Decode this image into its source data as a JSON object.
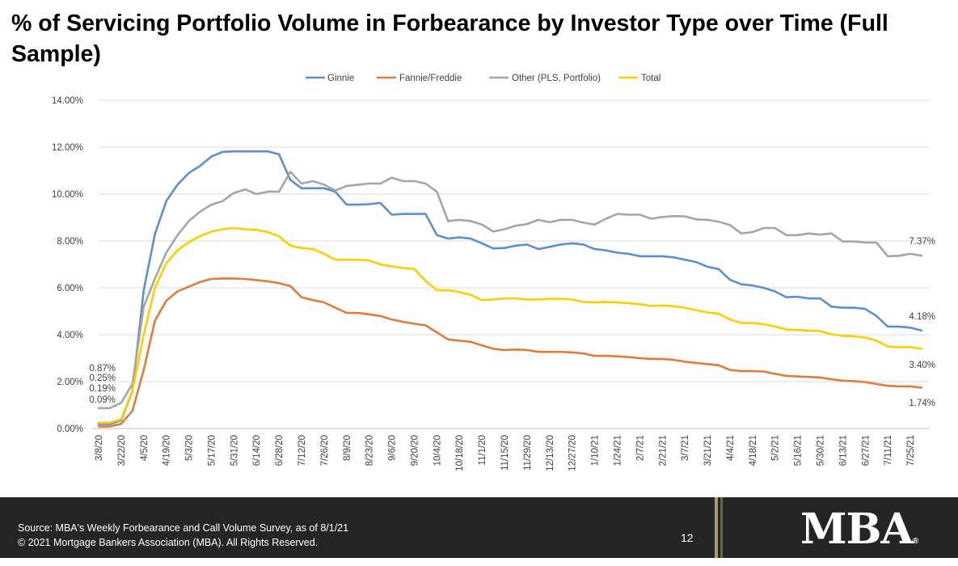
{
  "page": {
    "title": "% of Servicing Portfolio Volume in Forbearance by Investor Type over Time (Full Sample)",
    "footer": {
      "source": "Source: MBA's Weekly Forbearance and Call Volume Survey, as of 8/1/21",
      "copyright": "© 2021 Mortgage Bankers Association (MBA). All Rights Reserved.",
      "page_number": "12",
      "logo_text": "MBA",
      "logo_mark": "®"
    }
  },
  "chart_data": {
    "type": "line",
    "title": "% of Servicing Portfolio Volume in Forbearance by Investor Type over Time (Full Sample)",
    "xlabel": "",
    "ylabel": "",
    "ylim": [
      0,
      14
    ],
    "yticks": [
      "0.00%",
      "2.00%",
      "4.00%",
      "6.00%",
      "8.00%",
      "10.00%",
      "12.00%",
      "14.00%"
    ],
    "grid": true,
    "legend_position": "top",
    "x": [
      "3/8/20",
      "3/15/20",
      "3/22/20",
      "3/29/20",
      "4/5/20",
      "4/12/20",
      "4/19/20",
      "4/26/20",
      "5/3/20",
      "5/10/20",
      "5/17/20",
      "5/24/20",
      "5/31/20",
      "6/7/20",
      "6/14/20",
      "6/21/20",
      "6/28/20",
      "7/5/20",
      "7/12/20",
      "7/19/20",
      "7/26/20",
      "8/2/20",
      "8/9/20",
      "8/16/20",
      "8/23/20",
      "8/30/20",
      "9/6/20",
      "9/13/20",
      "9/20/20",
      "9/27/20",
      "10/4/20",
      "10/11/20",
      "10/18/20",
      "10/25/20",
      "11/1/20",
      "11/8/20",
      "11/15/20",
      "11/22/20",
      "11/29/20",
      "12/6/20",
      "12/13/20",
      "12/20/20",
      "12/27/20",
      "1/3/21",
      "1/10/21",
      "1/17/21",
      "1/24/21",
      "1/31/21",
      "2/7/21",
      "2/14/21",
      "2/21/21",
      "2/28/21",
      "3/7/21",
      "3/14/21",
      "3/21/21",
      "3/28/21",
      "4/4/21",
      "4/11/21",
      "4/18/21",
      "4/25/21",
      "5/2/21",
      "5/9/21",
      "5/16/21",
      "5/23/21",
      "5/30/21",
      "6/6/21",
      "6/13/21",
      "6/20/21",
      "6/27/21",
      "7/4/21",
      "7/11/21",
      "7/18/21",
      "7/25/21",
      "8/1/21"
    ],
    "xtick_labels": [
      "3/8/20",
      "3/22/20",
      "4/5/20",
      "4/19/20",
      "5/3/20",
      "5/17/20",
      "5/31/20",
      "6/14/20",
      "6/28/20",
      "7/12/20",
      "7/26/20",
      "8/9/20",
      "8/23/20",
      "9/6/20",
      "9/20/20",
      "10/4/20",
      "10/18/20",
      "11/1/20",
      "11/15/20",
      "11/29/20",
      "12/13/20",
      "12/27/20",
      "1/10/21",
      "1/24/21",
      "2/7/21",
      "2/21/21",
      "3/7/21",
      "3/21/21",
      "4/4/21",
      "4/18/21",
      "5/2/21",
      "5/16/21",
      "5/30/21",
      "6/13/21",
      "6/27/21",
      "7/11/21",
      "7/25/21"
    ],
    "series": [
      {
        "name": "Ginnie",
        "color": "#5b8fcf",
        "values": [
          0.19,
          0.19,
          0.35,
          1.6,
          5.9,
          8.3,
          9.7,
          10.4,
          10.9,
          11.2,
          11.6,
          11.8,
          11.82,
          11.82,
          11.82,
          11.82,
          11.7,
          10.6,
          10.25,
          10.25,
          10.25,
          10.1,
          9.55,
          9.55,
          9.57,
          9.62,
          9.12,
          9.15,
          9.15,
          9.15,
          8.25,
          8.1,
          8.15,
          8.1,
          7.9,
          7.68,
          7.7,
          7.8,
          7.85,
          7.65,
          7.75,
          7.85,
          7.9,
          7.85,
          7.65,
          7.6,
          7.5,
          7.45,
          7.35,
          7.35,
          7.35,
          7.3,
          7.2,
          7.1,
          6.9,
          6.8,
          6.35,
          6.15,
          6.1,
          6.0,
          5.85,
          5.6,
          5.62,
          5.55,
          5.55,
          5.2,
          5.15,
          5.15,
          5.1,
          4.8,
          4.35,
          4.35,
          4.3,
          4.18
        ]
      },
      {
        "name": "Fannie/Freddie",
        "color": "#e07b39",
        "values": [
          0.09,
          0.09,
          0.2,
          0.75,
          2.5,
          4.6,
          5.45,
          5.85,
          6.05,
          6.25,
          6.38,
          6.4,
          6.4,
          6.38,
          6.33,
          6.28,
          6.2,
          6.08,
          5.6,
          5.48,
          5.38,
          5.15,
          4.93,
          4.93,
          4.87,
          4.8,
          4.65,
          4.55,
          4.47,
          4.4,
          4.1,
          3.8,
          3.75,
          3.7,
          3.55,
          3.4,
          3.35,
          3.37,
          3.35,
          3.27,
          3.27,
          3.27,
          3.25,
          3.2,
          3.1,
          3.1,
          3.08,
          3.05,
          3.0,
          2.97,
          2.97,
          2.93,
          2.85,
          2.8,
          2.75,
          2.7,
          2.5,
          2.45,
          2.45,
          2.43,
          2.33,
          2.25,
          2.22,
          2.2,
          2.18,
          2.1,
          2.04,
          2.02,
          1.98,
          1.9,
          1.82,
          1.8,
          1.8,
          1.74
        ]
      },
      {
        "name": "Other (PLS, Portfolio)",
        "color": "#a5a5a5",
        "values": [
          0.87,
          0.87,
          1.1,
          1.9,
          5.2,
          6.4,
          7.5,
          8.25,
          8.85,
          9.25,
          9.55,
          9.7,
          10.05,
          10.2,
          10.0,
          10.1,
          10.1,
          10.95,
          10.45,
          10.55,
          10.4,
          10.15,
          10.35,
          10.4,
          10.45,
          10.45,
          10.7,
          10.55,
          10.55,
          10.45,
          10.1,
          8.85,
          8.9,
          8.85,
          8.7,
          8.4,
          8.5,
          8.65,
          8.72,
          8.9,
          8.8,
          8.9,
          8.9,
          8.78,
          8.7,
          8.95,
          9.15,
          9.12,
          9.12,
          8.95,
          9.02,
          9.06,
          9.05,
          8.92,
          8.9,
          8.82,
          8.68,
          8.32,
          8.38,
          8.55,
          8.55,
          8.25,
          8.25,
          8.32,
          8.27,
          8.32,
          7.98,
          7.98,
          7.93,
          7.93,
          7.35,
          7.37,
          7.45,
          7.37
        ]
      },
      {
        "name": "Total",
        "color": "#ffcc00",
        "values": [
          0.25,
          0.25,
          0.4,
          1.6,
          4.0,
          6.0,
          7.05,
          7.6,
          7.95,
          8.2,
          8.4,
          8.5,
          8.55,
          8.5,
          8.47,
          8.38,
          8.2,
          7.8,
          7.7,
          7.65,
          7.45,
          7.2,
          7.2,
          7.2,
          7.17,
          7.0,
          6.92,
          6.85,
          6.8,
          6.3,
          5.9,
          5.9,
          5.82,
          5.7,
          5.48,
          5.5,
          5.55,
          5.55,
          5.5,
          5.5,
          5.53,
          5.53,
          5.5,
          5.4,
          5.38,
          5.4,
          5.38,
          5.35,
          5.3,
          5.23,
          5.25,
          5.22,
          5.15,
          5.05,
          4.95,
          4.9,
          4.65,
          4.5,
          4.5,
          4.45,
          4.35,
          4.22,
          4.2,
          4.18,
          4.15,
          4.02,
          3.95,
          3.93,
          3.88,
          3.75,
          3.5,
          3.47,
          3.47,
          3.4
        ]
      }
    ],
    "data_labels": [
      {
        "series": "Other (PLS, Portfolio)",
        "point": "start",
        "text": "0.87%"
      },
      {
        "series": "Total",
        "point": "start",
        "text": "0.25%"
      },
      {
        "series": "Ginnie",
        "point": "start",
        "text": "0.19%"
      },
      {
        "series": "Fannie/Freddie",
        "point": "start",
        "text": "0.09%"
      },
      {
        "series": "Other (PLS, Portfolio)",
        "point": "end",
        "text": "7.37%"
      },
      {
        "series": "Ginnie",
        "point": "end",
        "text": "4.18%"
      },
      {
        "series": "Total",
        "point": "end",
        "text": "3.40%"
      },
      {
        "series": "Fannie/Freddie",
        "point": "end",
        "text": "1.74%"
      }
    ]
  }
}
